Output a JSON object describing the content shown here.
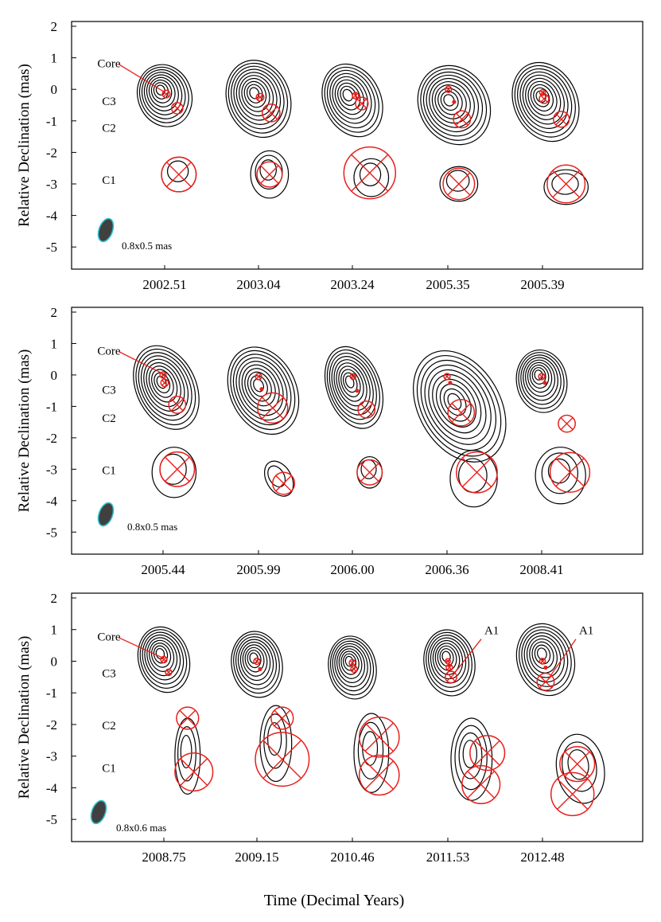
{
  "figure": {
    "xlabel": "Time (Decimal Years)",
    "ylabel": "Relative Declination (mas)"
  },
  "chart_data": [
    {
      "type": "contour-map-panel",
      "ylabel": "Relative Declination (mas)",
      "ylim": [
        -5.5,
        2
      ],
      "yticks": [
        "2",
        "1",
        "0",
        "-1",
        "-2",
        "-3",
        "-4",
        "-5"
      ],
      "epochs": [
        "2002.51",
        "2003.04",
        "2003.24",
        "2005.35",
        "2005.39"
      ],
      "component_labels": [
        {
          "name": "Core",
          "y": 0.85
        },
        {
          "name": "C3",
          "y": -0.35
        },
        {
          "name": "C2",
          "y": -1.2
        },
        {
          "name": "C1",
          "y": -2.85
        }
      ],
      "beam_label": "0.8x0.5 mas",
      "annotations": [
        "Core"
      ]
    },
    {
      "type": "contour-map-panel",
      "ylabel": "Relative Declination (mas)",
      "ylim": [
        -5.5,
        2
      ],
      "yticks": [
        "2",
        "1",
        "0",
        "-1",
        "-2",
        "-3",
        "-4",
        "-5"
      ],
      "epochs": [
        "2005.44",
        "2005.99",
        "2006.00",
        "2006.36",
        "2008.41"
      ],
      "component_labels": [
        {
          "name": "Core",
          "y": 0.8
        },
        {
          "name": "C3",
          "y": -0.45
        },
        {
          "name": "C2",
          "y": -1.35
        },
        {
          "name": "C1",
          "y": -3.0
        }
      ],
      "beam_label": "0.8x0.5 mas",
      "annotations": [
        "Core"
      ]
    },
    {
      "type": "contour-map-panel",
      "ylabel": "Relative Declination (mas)",
      "ylim": [
        -5.5,
        2
      ],
      "yticks": [
        "2",
        "1",
        "0",
        "-1",
        "-2",
        "-3",
        "-4",
        "-5"
      ],
      "epochs": [
        "2008.75",
        "2009.15",
        "2010.46",
        "2011.53",
        "2012.48"
      ],
      "component_labels": [
        {
          "name": "Core",
          "y": 0.8
        },
        {
          "name": "C3",
          "y": -0.35
        },
        {
          "name": "C2",
          "y": -2.0
        },
        {
          "name": "C1",
          "y": -3.35
        }
      ],
      "beam_label": "0.8x0.6 mas",
      "annotations": [
        "Core",
        "A1",
        "A1"
      ]
    }
  ]
}
